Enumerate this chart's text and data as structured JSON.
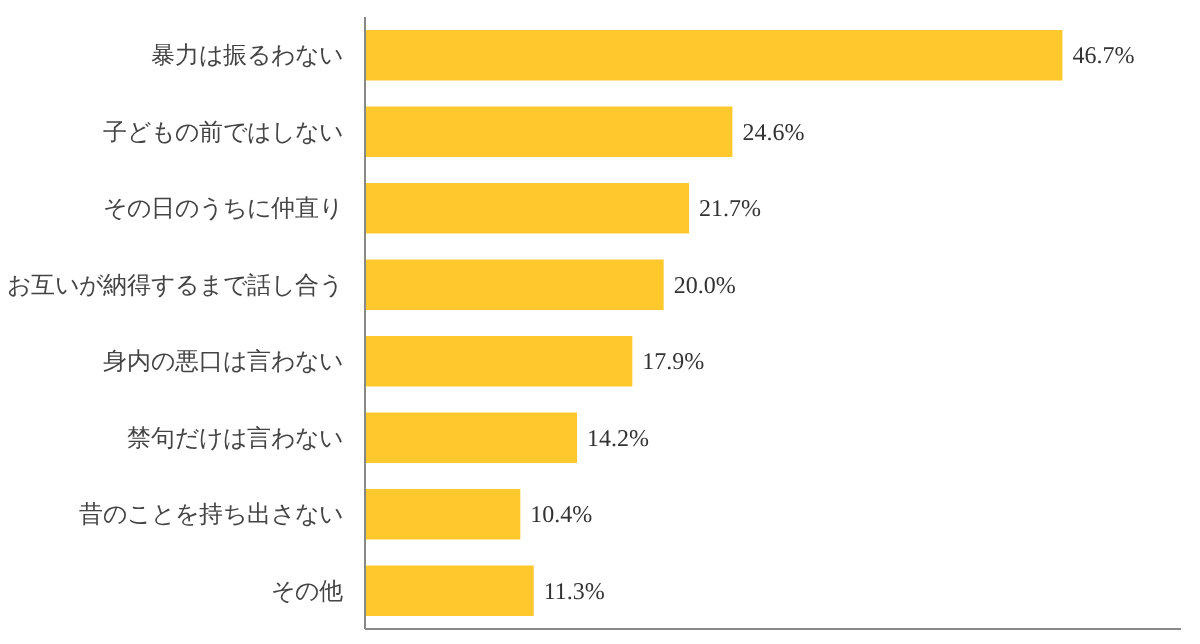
{
  "chart_data": {
    "type": "bar",
    "orientation": "horizontal",
    "categories": [
      "暴力は振るわない",
      "子どもの前ではしない",
      "その日のうちに仲直り",
      "お互いが納得するまで話し合う",
      "身内の悪口は言わない",
      "禁句だけは言わない",
      "昔のことを持ち出さない",
      "その他"
    ],
    "values": [
      46.7,
      24.6,
      21.7,
      20.0,
      17.9,
      14.2,
      10.4,
      11.3
    ],
    "value_labels": [
      "46.7%",
      "24.6%",
      "21.7%",
      "20.0%",
      "17.9%",
      "14.2%",
      "10.4%",
      "11.3%"
    ],
    "color": "#ffc92e",
    "grid": false
  }
}
